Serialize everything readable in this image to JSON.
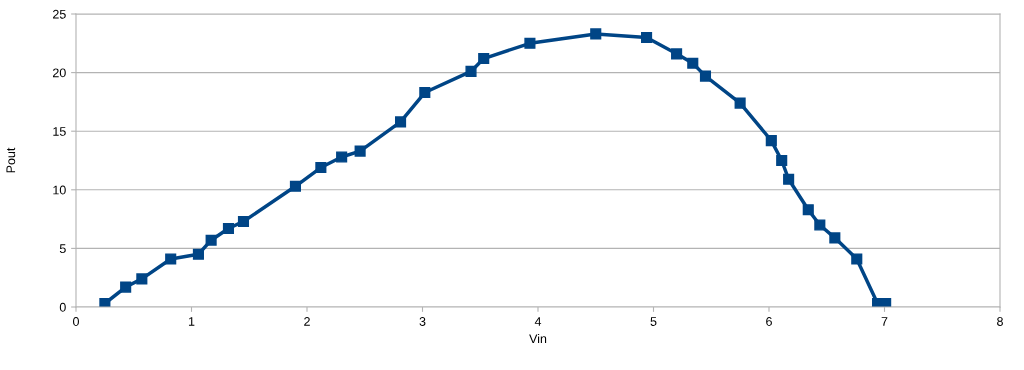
{
  "chart_data": {
    "type": "line",
    "xlabel": "Vin",
    "ylabel": "Pout",
    "x": [
      0.25,
      0.43,
      0.57,
      0.82,
      1.06,
      1.17,
      1.32,
      1.45,
      1.9,
      2.12,
      2.3,
      2.46,
      2.81,
      3.02,
      3.42,
      3.53,
      3.93,
      4.5,
      4.94,
      5.2,
      5.34,
      5.45,
      5.75,
      6.02,
      6.11,
      6.17,
      6.34,
      6.44,
      6.57,
      6.76,
      6.94,
      7.01
    ],
    "series": [
      {
        "color": "#004586",
        "values": [
          0.3,
          1.7,
          2.4,
          4.1,
          4.5,
          5.7,
          6.7,
          7.3,
          10.3,
          11.9,
          12.8,
          13.3,
          15.8,
          18.3,
          20.1,
          21.2,
          22.5,
          23.3,
          23.0,
          21.6,
          20.8,
          19.7,
          17.4,
          14.2,
          12.5,
          10.9,
          8.3,
          7.0,
          5.9,
          4.1,
          0.3,
          0.3
        ]
      }
    ],
    "xlim": [
      0,
      8
    ],
    "xticks": [
      0,
      1,
      2,
      3,
      4,
      5,
      6,
      7,
      8
    ],
    "ylim": [
      0,
      25
    ],
    "yticks": [
      0,
      5,
      10,
      15,
      20,
      25
    ],
    "grid": "y",
    "marker": "square",
    "line_style": "solid"
  }
}
